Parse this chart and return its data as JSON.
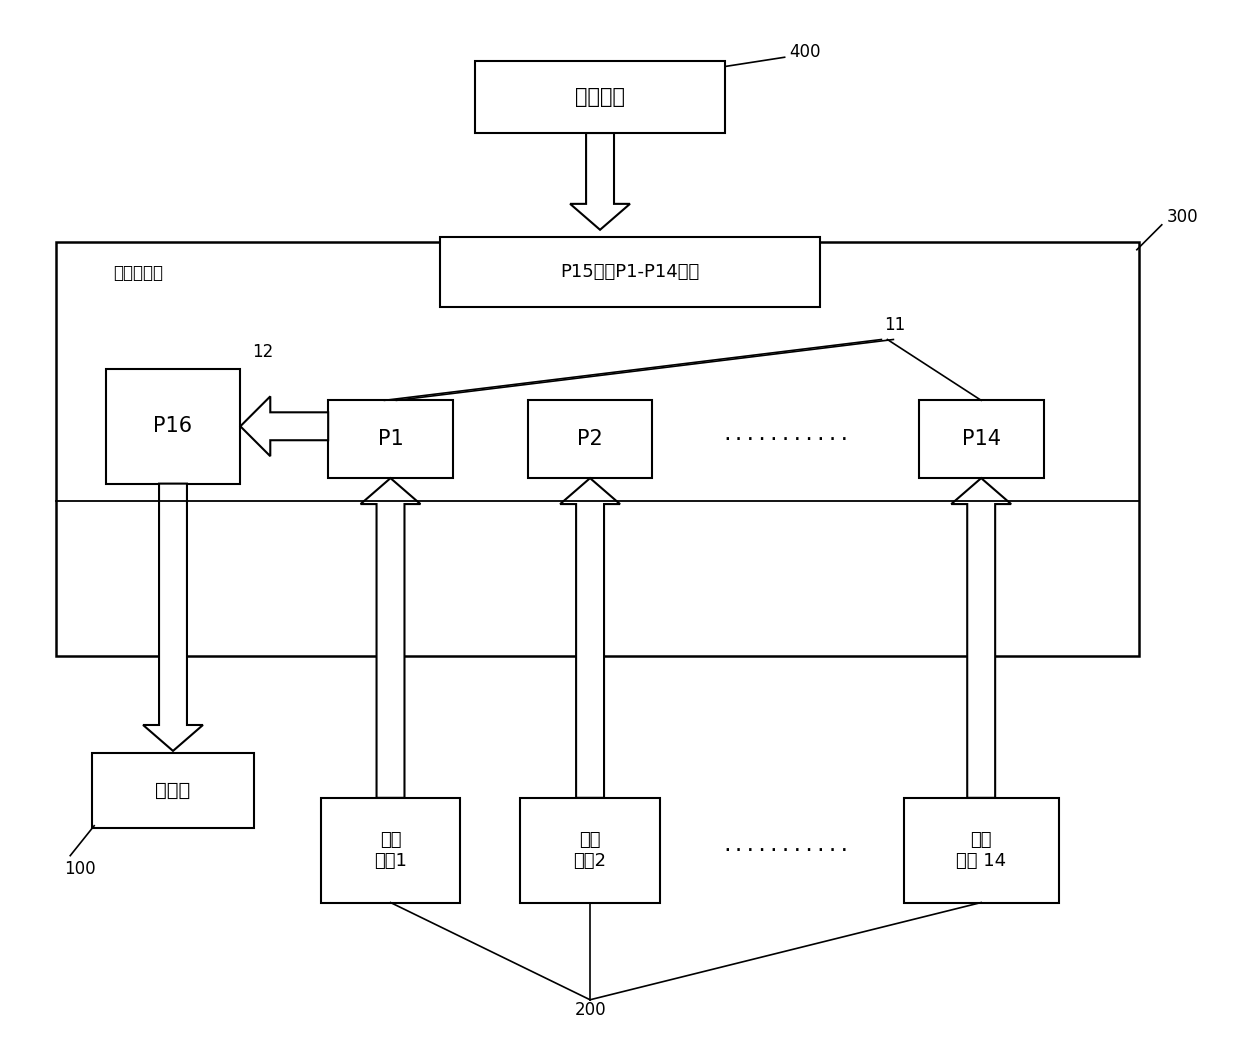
{
  "bg_color": "#ffffff",
  "title_400": "400",
  "title_300": "300",
  "title_11": "11",
  "title_12": "12",
  "title_100": "100",
  "title_200": "200",
  "label_boma": "拨码开关",
  "label_p15": "P15选择P1-P14之一",
  "label_yijian": "一键烧写板",
  "label_p16": "P16",
  "label_p1": "P1",
  "label_p2": "P2",
  "label_p14": "P14",
  "label_dots1": "···········",
  "label_dots2": "···········",
  "label_debug": "调试器",
  "label_node1": "节点\n模兤1",
  "label_node2": "节点\n模兤2",
  "label_node14": "节点\n模兤 14"
}
